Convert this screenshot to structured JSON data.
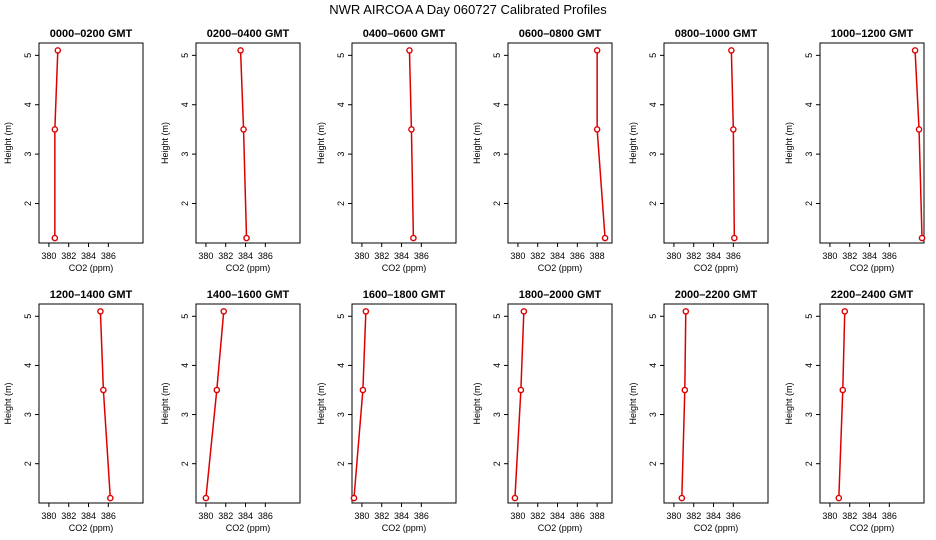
{
  "figure": {
    "title": "NWR AIRCOA A  Day 060727  Calibrated Profiles",
    "series_color": "#dd0000"
  },
  "chart_data": [
    {
      "type": "line",
      "title": "0000–0200 GMT",
      "xlabel": "CO2 (ppm)",
      "ylabel": "Height (m)",
      "xlim": [
        379,
        389.5
      ],
      "ylim": [
        1.2,
        5.25
      ],
      "xticks": [
        380,
        382,
        384,
        386
      ],
      "yticks": [
        2,
        3,
        4,
        5
      ],
      "x": [
        380.9,
        380.6,
        380.6
      ],
      "y": [
        5.1,
        3.5,
        1.3
      ]
    },
    {
      "type": "line",
      "title": "0200–0400 GMT",
      "xlabel": "CO2 (ppm)",
      "ylabel": "Height (m)",
      "xlim": [
        379,
        389.5
      ],
      "ylim": [
        1.2,
        5.25
      ],
      "xticks": [
        380,
        382,
        384,
        386
      ],
      "yticks": [
        2,
        3,
        4,
        5
      ],
      "x": [
        383.5,
        383.8,
        384.1
      ],
      "y": [
        5.1,
        3.5,
        1.3
      ]
    },
    {
      "type": "line",
      "title": "0400–0600 GMT",
      "xlabel": "CO2 (ppm)",
      "ylabel": "Height (m)",
      "xlim": [
        379,
        389.5
      ],
      "ylim": [
        1.2,
        5.25
      ],
      "xticks": [
        380,
        382,
        384,
        386
      ],
      "yticks": [
        2,
        3,
        4,
        5
      ],
      "x": [
        384.8,
        385.0,
        385.2
      ],
      "y": [
        5.1,
        3.5,
        1.3
      ]
    },
    {
      "type": "line",
      "title": "0600–0800 GMT",
      "xlabel": "CO2 (ppm)",
      "ylabel": "Height (m)",
      "xlim": [
        379,
        389.5
      ],
      "ylim": [
        1.2,
        5.25
      ],
      "xticks": [
        380,
        382,
        384,
        386,
        388
      ],
      "yticks": [
        2,
        3,
        4,
        5
      ],
      "x": [
        388.0,
        388.0,
        388.8
      ],
      "y": [
        5.1,
        3.5,
        1.3
      ]
    },
    {
      "type": "line",
      "title": "0800–1000 GMT",
      "xlabel": "CO2 (ppm)",
      "ylabel": "Height (m)",
      "xlim": [
        379,
        389.5
      ],
      "ylim": [
        1.2,
        5.25
      ],
      "xticks": [
        380,
        382,
        384,
        386
      ],
      "yticks": [
        2,
        3,
        4,
        5
      ],
      "x": [
        385.8,
        386.0,
        386.1
      ],
      "y": [
        5.1,
        3.5,
        1.3
      ]
    },
    {
      "type": "line",
      "title": "1000–1200 GMT",
      "xlabel": "CO2 (ppm)",
      "ylabel": "Height (m)",
      "xlim": [
        379,
        389.5
      ],
      "ylim": [
        1.2,
        5.25
      ],
      "xticks": [
        380,
        382,
        384,
        386
      ],
      "yticks": [
        2,
        3,
        4,
        5
      ],
      "x": [
        388.6,
        389.0,
        389.3
      ],
      "y": [
        5.1,
        3.5,
        1.3
      ]
    },
    {
      "type": "line",
      "title": "1200–1400 GMT",
      "xlabel": "CO2 (ppm)",
      "ylabel": "Height (m)",
      "xlim": [
        379,
        389.5
      ],
      "ylim": [
        1.2,
        5.25
      ],
      "xticks": [
        380,
        382,
        384,
        386
      ],
      "yticks": [
        2,
        3,
        4,
        5
      ],
      "x": [
        385.2,
        385.5,
        386.2
      ],
      "y": [
        5.1,
        3.5,
        1.3
      ]
    },
    {
      "type": "line",
      "title": "1400–1600 GMT",
      "xlabel": "CO2 (ppm)",
      "ylabel": "Height (m)",
      "xlim": [
        379,
        389.5
      ],
      "ylim": [
        1.2,
        5.25
      ],
      "xticks": [
        380,
        382,
        384,
        386
      ],
      "yticks": [
        2,
        3,
        4,
        5
      ],
      "x": [
        381.8,
        381.1,
        380.0
      ],
      "y": [
        5.1,
        3.5,
        1.3
      ]
    },
    {
      "type": "line",
      "title": "1600–1800 GMT",
      "xlabel": "CO2 (ppm)",
      "ylabel": "Height (m)",
      "xlim": [
        379,
        389.5
      ],
      "ylim": [
        1.2,
        5.25
      ],
      "xticks": [
        380,
        382,
        384,
        386
      ],
      "yticks": [
        2,
        3,
        4,
        5
      ],
      "x": [
        380.4,
        380.1,
        379.2
      ],
      "y": [
        5.1,
        3.5,
        1.3
      ]
    },
    {
      "type": "line",
      "title": "1800–2000 GMT",
      "xlabel": "CO2 (ppm)",
      "ylabel": "Height (m)",
      "xlim": [
        379,
        389.5
      ],
      "ylim": [
        1.2,
        5.25
      ],
      "xticks": [
        380,
        382,
        384,
        386,
        388
      ],
      "yticks": [
        2,
        3,
        4,
        5
      ],
      "x": [
        380.6,
        380.3,
        379.7
      ],
      "y": [
        5.1,
        3.5,
        1.3
      ]
    },
    {
      "type": "line",
      "title": "2000–2200 GMT",
      "xlabel": "CO2 (ppm)",
      "ylabel": "Height (m)",
      "xlim": [
        379,
        389.5
      ],
      "ylim": [
        1.2,
        5.25
      ],
      "xticks": [
        380,
        382,
        384,
        386
      ],
      "yticks": [
        2,
        3,
        4,
        5
      ],
      "x": [
        381.2,
        381.1,
        380.8
      ],
      "y": [
        5.1,
        3.5,
        1.3
      ]
    },
    {
      "type": "line",
      "title": "2200–2400 GMT",
      "xlabel": "CO2 (ppm)",
      "ylabel": "Height (m)",
      "xlim": [
        379,
        389.5
      ],
      "ylim": [
        1.2,
        5.25
      ],
      "xticks": [
        380,
        382,
        384,
        386
      ],
      "yticks": [
        2,
        3,
        4,
        5
      ],
      "x": [
        381.5,
        381.3,
        380.9
      ],
      "y": [
        5.1,
        3.5,
        1.3
      ]
    }
  ]
}
